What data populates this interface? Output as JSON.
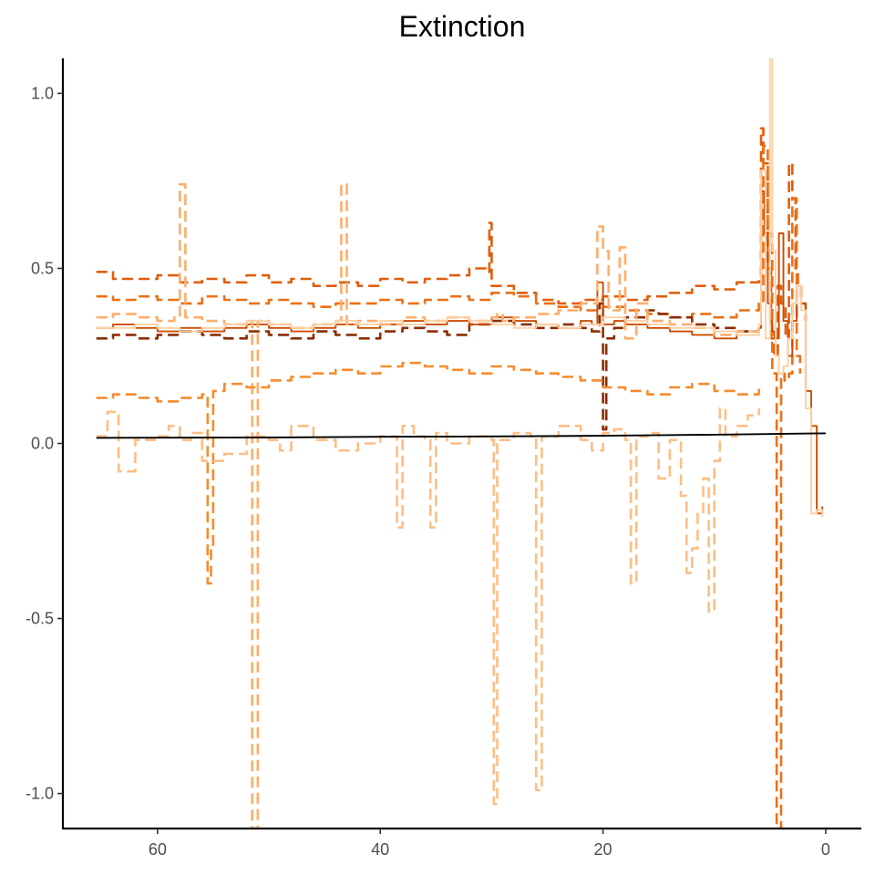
{
  "chart_data": {
    "type": "line",
    "title": "Extinction",
    "xlabel": "",
    "ylabel": "",
    "x_reversed": true,
    "xlim": [
      68.5,
      -3.2
    ],
    "ylim": [
      -1.1,
      1.1
    ],
    "grid": false,
    "legend": "none",
    "x_ticks": [
      {
        "value": 60,
        "label": "60"
      },
      {
        "value": 40,
        "label": "40"
      },
      {
        "value": 20,
        "label": "20"
      },
      {
        "value": 0,
        "label": "0"
      }
    ],
    "y_ticks": [
      {
        "value": 1.0,
        "label": "1.0"
      },
      {
        "value": 0.5,
        "label": "0.5"
      },
      {
        "value": 0.0,
        "label": "0.0"
      },
      {
        "value": -0.5,
        "label": "-0.5"
      },
      {
        "value": -1.0,
        "label": "-1.0"
      }
    ],
    "series": [
      {
        "color": "#e15d0a",
        "dashed": true,
        "step": true,
        "x": [
          65.5,
          64,
          62,
          60,
          58,
          56,
          54,
          52,
          50,
          48,
          46,
          44,
          42,
          40,
          38,
          36,
          34,
          32,
          30.5,
          30.2,
          30,
          28,
          26,
          24,
          22,
          20,
          18,
          16,
          14,
          12,
          10,
          8,
          6,
          5.8,
          5.6,
          5.2,
          4.9,
          4.6,
          4.3,
          4,
          3.6,
          3.3,
          3,
          2.7,
          2.5,
          2.2,
          1.8
        ],
        "y": [
          0.49,
          0.47,
          0.47,
          0.48,
          0.46,
          0.47,
          0.46,
          0.48,
          0.46,
          0.47,
          0.45,
          0.46,
          0.45,
          0.47,
          0.46,
          0.47,
          0.48,
          0.5,
          0.49,
          0.63,
          0.45,
          0.43,
          0.41,
          0.4,
          0.41,
          0.42,
          0.41,
          0.42,
          0.43,
          0.45,
          0.44,
          0.46,
          0.47,
          0.9,
          0.8,
          0.5,
          0.3,
          0.25,
          0.45,
          0.4,
          0.3,
          0.8,
          0.7,
          0.5,
          0.45,
          0.4,
          0.35
        ]
      },
      {
        "color": "#ec7014",
        "dashed": true,
        "step": true,
        "x": [
          65.5,
          64,
          62,
          60,
          58,
          56,
          54,
          52,
          50,
          48,
          46,
          44,
          42,
          40,
          38,
          36,
          34,
          32,
          30,
          28,
          26,
          24,
          22,
          20,
          18,
          16,
          14,
          12,
          10,
          8,
          6,
          5.6,
          5.2,
          4.8,
          4.4,
          4,
          3.7,
          3.3,
          3,
          2.6,
          2.3
        ],
        "y": [
          0.42,
          0.41,
          0.42,
          0.41,
          0.4,
          0.42,
          0.41,
          0.4,
          0.41,
          0.4,
          0.39,
          0.4,
          0.4,
          0.41,
          0.4,
          0.41,
          0.42,
          0.41,
          0.43,
          0.42,
          0.4,
          0.39,
          0.38,
          0.39,
          0.38,
          0.37,
          0.36,
          0.37,
          0.36,
          0.38,
          0.4,
          0.85,
          0.6,
          0.2,
          -1.1,
          0.2,
          0.18,
          0.2,
          0.7,
          0.25,
          0.2
        ]
      },
      {
        "color": "#8c2d04",
        "dashed": true,
        "step": true,
        "x": [
          65.5,
          64,
          62,
          60,
          58,
          56,
          54,
          52,
          50,
          48,
          46,
          44,
          42,
          40,
          38,
          36,
          34,
          32,
          30,
          28,
          26,
          24,
          22,
          21,
          20.3,
          20,
          19.7,
          19,
          18,
          16,
          15,
          14,
          12,
          10,
          8,
          6
        ],
        "y": [
          0.3,
          0.31,
          0.3,
          0.31,
          0.32,
          0.31,
          0.3,
          0.32,
          0.31,
          0.3,
          0.32,
          0.31,
          0.3,
          0.32,
          0.33,
          0.32,
          0.31,
          0.34,
          0.35,
          0.34,
          0.33,
          0.34,
          0.33,
          0.32,
          0.4,
          0.04,
          0.3,
          0.33,
          0.36,
          0.38,
          0.37,
          0.36,
          0.34,
          0.33,
          0.32,
          0.33
        ]
      },
      {
        "color": "#cc4c02",
        "dashed": false,
        "step": true,
        "x": [
          65.5,
          64,
          62,
          60,
          58,
          56,
          54,
          52,
          50,
          48,
          46,
          44,
          42,
          40,
          38,
          36,
          34,
          32,
          30,
          28,
          26,
          24,
          22,
          21,
          20.5,
          20,
          19,
          18,
          16,
          14,
          12,
          10,
          8,
          6,
          5.8,
          5.5,
          5.2,
          5,
          4.8,
          4.6,
          4.2,
          3.8,
          3.4,
          3,
          2.6,
          2.2,
          1.8,
          1.3,
          0.8,
          0.3
        ],
        "y": [
          0.33,
          0.34,
          0.33,
          0.32,
          0.33,
          0.32,
          0.33,
          0.34,
          0.33,
          0.32,
          0.33,
          0.34,
          0.33,
          0.34,
          0.35,
          0.34,
          0.35,
          0.34,
          0.36,
          0.35,
          0.34,
          0.33,
          0.35,
          0.34,
          0.46,
          0.34,
          0.35,
          0.34,
          0.33,
          0.32,
          0.31,
          0.3,
          0.31,
          0.33,
          0.72,
          0.6,
          0.4,
          0.35,
          0.32,
          0.3,
          0.6,
          0.35,
          0.25,
          0.35,
          0.45,
          0.4,
          0.15,
          0.05,
          -0.2,
          -0.18
        ]
      },
      {
        "color": "#fdae6b",
        "dashed": true,
        "step": true,
        "x": [
          65.5,
          64,
          62,
          60,
          58.5,
          58,
          57.5,
          56,
          54,
          52,
          51.5,
          51,
          50,
          48,
          46,
          44,
          43.5,
          43,
          42,
          40,
          38,
          36,
          34,
          32,
          30,
          29.5,
          29,
          28,
          26,
          24,
          22,
          20.5,
          20,
          19.5,
          18.5,
          18,
          17,
          16,
          14,
          12,
          10,
          8,
          6
        ],
        "y": [
          0.36,
          0.37,
          0.36,
          0.35,
          0.36,
          0.74,
          0.36,
          0.35,
          0.34,
          0.35,
          -1.1,
          0.35,
          0.34,
          0.33,
          0.34,
          0.35,
          0.74,
          0.34,
          0.35,
          0.34,
          0.36,
          0.35,
          0.36,
          0.35,
          0.36,
          0.37,
          0.35,
          0.36,
          0.37,
          0.38,
          0.4,
          0.62,
          0.55,
          0.38,
          0.56,
          0.3,
          0.4,
          0.35,
          0.34,
          0.33,
          0.31,
          0.32,
          0.34
        ]
      },
      {
        "color": "#fdd0a2",
        "dashed": false,
        "step": true,
        "x": [
          65.5,
          64,
          62,
          60,
          58,
          56,
          54,
          52,
          50,
          48,
          46,
          44,
          42,
          40,
          38,
          36,
          34,
          32,
          30,
          28,
          26,
          24,
          22,
          20,
          18,
          16,
          14,
          12,
          10,
          8,
          6,
          5.8,
          5.4,
          5,
          4.8,
          4.5,
          4.2,
          3.8,
          3.4,
          3,
          2.6,
          2.2,
          1.8,
          1.3,
          0.8,
          0.3
        ],
        "y": [
          0.33,
          0.33,
          0.34,
          0.33,
          0.32,
          0.33,
          0.34,
          0.35,
          0.34,
          0.33,
          0.34,
          0.35,
          0.34,
          0.35,
          0.34,
          0.35,
          0.36,
          0.35,
          0.34,
          0.33,
          0.34,
          0.33,
          0.34,
          0.36,
          0.35,
          0.34,
          0.33,
          0.33,
          0.32,
          0.31,
          0.34,
          0.78,
          0.3,
          1.1,
          0.55,
          0.25,
          0.2,
          0.22,
          0.3,
          0.4,
          0.45,
          0.38,
          0.1,
          -0.2,
          -0.19,
          -0.21
        ]
      },
      {
        "color": "#f68b2c",
        "dashed": true,
        "step": true,
        "x": [
          65.5,
          64,
          62,
          60,
          58,
          56,
          55.5,
          55.2,
          55,
          54,
          52,
          50,
          48,
          46,
          44,
          42,
          40,
          38,
          36,
          34,
          32,
          30,
          28,
          26,
          24,
          22,
          20,
          18,
          16,
          14,
          12,
          10,
          8,
          6
        ],
        "y": [
          0.13,
          0.14,
          0.13,
          0.12,
          0.13,
          0.14,
          -0.4,
          -0.3,
          0.15,
          0.17,
          0.16,
          0.18,
          0.19,
          0.2,
          0.21,
          0.2,
          0.22,
          0.23,
          0.22,
          0.21,
          0.2,
          0.22,
          0.21,
          0.2,
          0.19,
          0.18,
          0.16,
          0.15,
          0.14,
          0.16,
          0.17,
          0.15,
          0.14,
          0.16
        ]
      },
      {
        "color": "#fdbe85",
        "dashed": true,
        "step": true,
        "x": [
          65.5,
          64.5,
          63.5,
          62,
          60,
          59,
          58,
          57,
          56,
          54,
          52,
          50,
          49,
          48,
          46,
          44,
          42,
          40,
          38.5,
          38,
          37,
          36,
          35.5,
          35,
          34,
          32,
          30,
          29.8,
          29.5,
          28,
          26.5,
          26,
          25.5,
          24,
          22,
          21,
          20,
          19,
          18,
          17.5,
          17,
          16,
          15,
          14,
          13,
          12.5,
          12,
          11.5,
          11,
          10.5,
          10,
          9.5,
          9,
          8,
          7,
          6
        ],
        "y": [
          0.02,
          0.09,
          -0.08,
          0.01,
          0.02,
          0.05,
          0.01,
          0.03,
          -0.05,
          -0.03,
          0.02,
          0.01,
          -0.02,
          0.05,
          0.01,
          -0.02,
          0.0,
          0.02,
          -0.24,
          0.05,
          0.02,
          0.01,
          -0.24,
          0.03,
          0.0,
          0.02,
          0.01,
          -1.03,
          0.01,
          0.03,
          0.02,
          -0.99,
          0.02,
          0.05,
          0.01,
          -0.02,
          0.03,
          0.04,
          0.01,
          -0.4,
          0.02,
          0.03,
          -0.1,
          0.01,
          -0.15,
          -0.37,
          -0.3,
          -0.2,
          -0.1,
          -0.48,
          -0.05,
          0.1,
          0.02,
          0.05,
          0.08,
          0.1
        ]
      },
      {
        "color": "#000000",
        "dashed": false,
        "step": false,
        "x": [
          65.5,
          50,
          40,
          30,
          20,
          10,
          0
        ],
        "y": [
          0.016,
          0.017,
          0.019,
          0.02,
          0.022,
          0.025,
          0.029
        ]
      }
    ]
  }
}
